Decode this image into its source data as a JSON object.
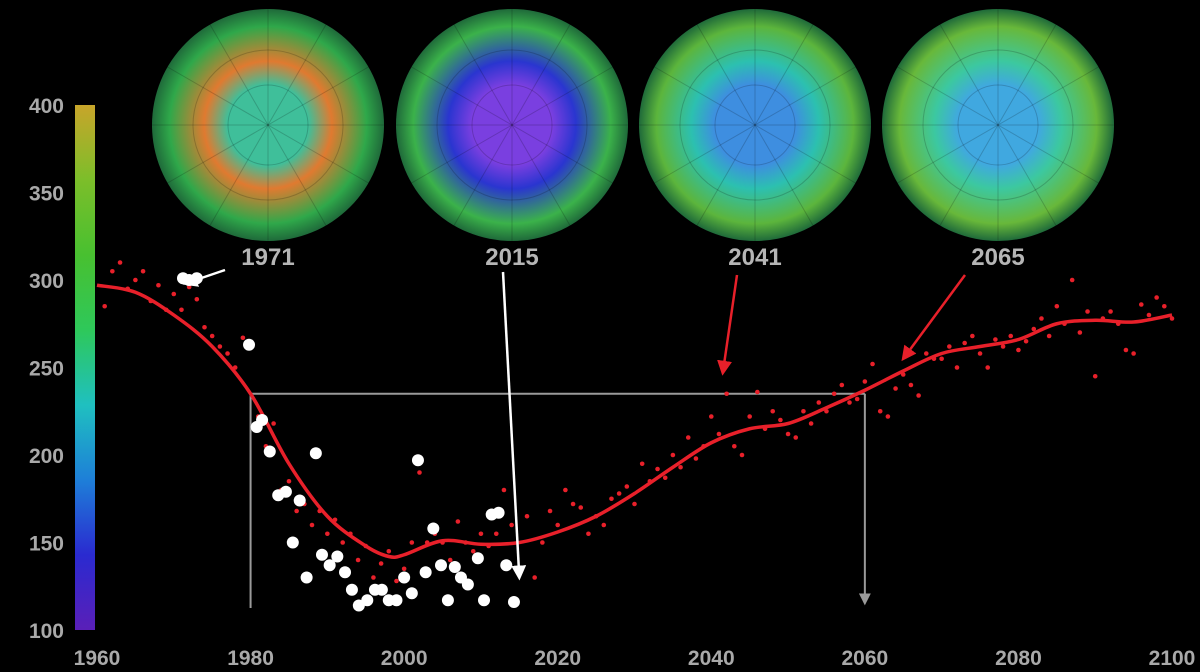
{
  "chart_data": {
    "type": "scatter",
    "title": "",
    "xlabel": "",
    "ylabel": "",
    "xlim": [
      1960,
      2100
    ],
    "ylim": [
      100,
      400
    ],
    "x_ticks": [
      "1960",
      "1980",
      "2000",
      "2020",
      "2040",
      "2060",
      "2080",
      "2100"
    ],
    "y_ticks": [
      "400",
      "350",
      "300",
      "250",
      "200",
      "150",
      "100"
    ],
    "grid": false,
    "colorbar": {
      "range": [
        100,
        400
      ],
      "colors": [
        "#5a1fb8",
        "#2a2ad0",
        "#1e7fd8",
        "#1fc0c0",
        "#2ec85a",
        "#48c030",
        "#7cbe2a",
        "#c8a52a"
      ]
    },
    "globes": [
      {
        "label": "1971",
        "center": "#3fbf9a",
        "ring": "#e07a30",
        "outer": "#2fa84a"
      },
      {
        "label": "2015",
        "center": "#7a3fe0",
        "ring": "#2a35d0",
        "outer": "#3bb24a"
      },
      {
        "label": "2041",
        "center": "#3e8ee0",
        "ring": "#2cc0b0",
        "outer": "#5cb53c"
      },
      {
        "label": "2065",
        "center": "#40a8e0",
        "ring": "#3cc8a0",
        "outer": "#68b83a"
      }
    ],
    "series": [
      {
        "color": "#ffffff",
        "style": "large-dots",
        "points": [
          [
            1971.2,
            301
          ],
          [
            1972,
            300
          ],
          [
            1973,
            301
          ],
          [
            1979.8,
            263
          ],
          [
            1980.8,
            216
          ],
          [
            1981.5,
            220
          ],
          [
            1982.5,
            202
          ],
          [
            1983.6,
            177
          ],
          [
            1984.6,
            179
          ],
          [
            1985.5,
            150
          ],
          [
            1986.4,
            174
          ],
          [
            1987.3,
            130
          ],
          [
            1988.5,
            201
          ],
          [
            1989.3,
            143
          ],
          [
            1990.3,
            137
          ],
          [
            1991.3,
            142
          ],
          [
            1992.3,
            133
          ],
          [
            1993.2,
            123
          ],
          [
            1994.1,
            114
          ],
          [
            1995.2,
            117
          ],
          [
            1996.2,
            123
          ],
          [
            1997.1,
            123
          ],
          [
            1998,
            117
          ],
          [
            1999,
            117
          ],
          [
            2000,
            130
          ],
          [
            2001,
            121
          ],
          [
            2001.8,
            197
          ],
          [
            2002.8,
            133
          ],
          [
            2003.8,
            158
          ],
          [
            2004.8,
            137
          ],
          [
            2005.7,
            117
          ],
          [
            2006.6,
            136
          ],
          [
            2007.4,
            130
          ],
          [
            2008.3,
            126
          ],
          [
            2009.6,
            141
          ],
          [
            2010.4,
            117
          ],
          [
            2011.4,
            166
          ],
          [
            2012.3,
            167
          ],
          [
            2013.3,
            137
          ],
          [
            2014.3,
            116
          ]
        ]
      },
      {
        "color": "#e8202a",
        "style": "small-dots",
        "points": [
          [
            1961,
            285
          ],
          [
            1962,
            305
          ],
          [
            1963,
            310
          ],
          [
            1964,
            295
          ],
          [
            1965,
            300
          ],
          [
            1966,
            305
          ],
          [
            1967,
            288
          ],
          [
            1968,
            297
          ],
          [
            1969,
            283
          ],
          [
            1970,
            292
          ],
          [
            1971,
            283
          ],
          [
            1972,
            296
          ],
          [
            1973,
            289
          ],
          [
            1974,
            273
          ],
          [
            1975,
            268
          ],
          [
            1976,
            262
          ],
          [
            1977,
            258
          ],
          [
            1978,
            250
          ],
          [
            1979,
            267
          ],
          [
            1980,
            262
          ],
          [
            1981,
            222
          ],
          [
            1982,
            205
          ],
          [
            1983,
            218
          ],
          [
            1984,
            180
          ],
          [
            1985,
            185
          ],
          [
            1986,
            168
          ],
          [
            1987,
            172
          ],
          [
            1988,
            160
          ],
          [
            1989,
            168
          ],
          [
            1990,
            155
          ],
          [
            1991,
            163
          ],
          [
            1992,
            150
          ],
          [
            1993,
            155
          ],
          [
            1994,
            140
          ],
          [
            1995,
            148
          ],
          [
            1996,
            130
          ],
          [
            1997,
            138
          ],
          [
            1998,
            145
          ],
          [
            1999,
            128
          ],
          [
            2000,
            135
          ],
          [
            2001,
            150
          ],
          [
            2002,
            190
          ],
          [
            2003,
            150
          ],
          [
            2004,
            155
          ],
          [
            2005,
            150
          ],
          [
            2006,
            140
          ],
          [
            2007,
            162
          ],
          [
            2008,
            150
          ],
          [
            2009,
            145
          ],
          [
            2010,
            155
          ],
          [
            2011,
            148
          ],
          [
            2012,
            155
          ],
          [
            2013,
            180
          ],
          [
            2014,
            160
          ],
          [
            2015,
            135
          ],
          [
            2016,
            165
          ],
          [
            2017,
            130
          ],
          [
            2018,
            150
          ],
          [
            2019,
            168
          ],
          [
            2020,
            160
          ],
          [
            2021,
            180
          ],
          [
            2022,
            172
          ],
          [
            2023,
            170
          ],
          [
            2024,
            155
          ],
          [
            2025,
            165
          ],
          [
            2026,
            160
          ],
          [
            2027,
            175
          ],
          [
            2028,
            178
          ],
          [
            2029,
            182
          ],
          [
            2030,
            172
          ],
          [
            2031,
            195
          ],
          [
            2032,
            185
          ],
          [
            2033,
            192
          ],
          [
            2034,
            187
          ],
          [
            2035,
            200
          ],
          [
            2036,
            193
          ],
          [
            2037,
            210
          ],
          [
            2038,
            198
          ],
          [
            2039,
            205
          ],
          [
            2040,
            222
          ],
          [
            2041,
            212
          ],
          [
            2042,
            235
          ],
          [
            2043,
            205
          ],
          [
            2044,
            200
          ],
          [
            2045,
            222
          ],
          [
            2046,
            236
          ],
          [
            2047,
            215
          ],
          [
            2048,
            225
          ],
          [
            2049,
            220
          ],
          [
            2050,
            212
          ],
          [
            2051,
            210
          ],
          [
            2052,
            225
          ],
          [
            2053,
            218
          ],
          [
            2054,
            230
          ],
          [
            2055,
            225
          ],
          [
            2056,
            235
          ],
          [
            2057,
            240
          ],
          [
            2058,
            230
          ],
          [
            2059,
            232
          ],
          [
            2060,
            242
          ],
          [
            2061,
            252
          ],
          [
            2062,
            225
          ],
          [
            2063,
            222
          ],
          [
            2064,
            238
          ],
          [
            2065,
            246
          ],
          [
            2066,
            240
          ],
          [
            2067,
            234
          ],
          [
            2068,
            258
          ],
          [
            2069,
            255
          ],
          [
            2070,
            255
          ],
          [
            2071,
            262
          ],
          [
            2072,
            250
          ],
          [
            2073,
            264
          ],
          [
            2074,
            268
          ],
          [
            2075,
            258
          ],
          [
            2076,
            250
          ],
          [
            2077,
            266
          ],
          [
            2078,
            262
          ],
          [
            2079,
            268
          ],
          [
            2080,
            260
          ],
          [
            2081,
            265
          ],
          [
            2082,
            272
          ],
          [
            2083,
            278
          ],
          [
            2084,
            268
          ],
          [
            2085,
            285
          ],
          [
            2086,
            275
          ],
          [
            2087,
            300
          ],
          [
            2088,
            270
          ],
          [
            2089,
            282
          ],
          [
            2090,
            245
          ],
          [
            2091,
            278
          ],
          [
            2092,
            282
          ],
          [
            2093,
            275
          ],
          [
            2094,
            260
          ],
          [
            2095,
            258
          ],
          [
            2096,
            286
          ],
          [
            2097,
            280
          ],
          [
            2098,
            290
          ],
          [
            2099,
            285
          ],
          [
            2100,
            278
          ]
        ]
      },
      {
        "color": "#e8202a",
        "style": "smooth-line",
        "points": [
          [
            1960,
            297
          ],
          [
            1965,
            293
          ],
          [
            1970,
            280
          ],
          [
            1975,
            262
          ],
          [
            1980,
            235
          ],
          [
            1985,
            195
          ],
          [
            1990,
            165
          ],
          [
            1995,
            148
          ],
          [
            1998,
            142
          ],
          [
            2000,
            143
          ],
          [
            2005,
            151
          ],
          [
            2010,
            149
          ],
          [
            2015,
            150
          ],
          [
            2020,
            156
          ],
          [
            2025,
            165
          ],
          [
            2030,
            178
          ],
          [
            2035,
            193
          ],
          [
            2040,
            207
          ],
          [
            2045,
            215
          ],
          [
            2050,
            218
          ],
          [
            2055,
            227
          ],
          [
            2060,
            237
          ],
          [
            2065,
            248
          ],
          [
            2070,
            258
          ],
          [
            2075,
            262
          ],
          [
            2080,
            266
          ],
          [
            2085,
            275
          ],
          [
            2090,
            277
          ],
          [
            2095,
            276
          ],
          [
            2100,
            280
          ]
        ]
      }
    ],
    "reference_lines": {
      "level": 235,
      "from_year": 1980,
      "to_year": 2060,
      "color": "#9a9a9a"
    },
    "annotations": [
      {
        "label_ref": "1971",
        "color": "#ffffff",
        "target": [
          1971.5,
          298
        ]
      },
      {
        "label_ref": "2015",
        "color": "#ffffff",
        "target": [
          2015,
          130
        ]
      },
      {
        "label_ref": "2041",
        "color": "#e8202a",
        "target": [
          2041.5,
          247
        ]
      },
      {
        "label_ref": "2065",
        "color": "#e8202a",
        "target": [
          2065,
          255
        ]
      }
    ]
  }
}
